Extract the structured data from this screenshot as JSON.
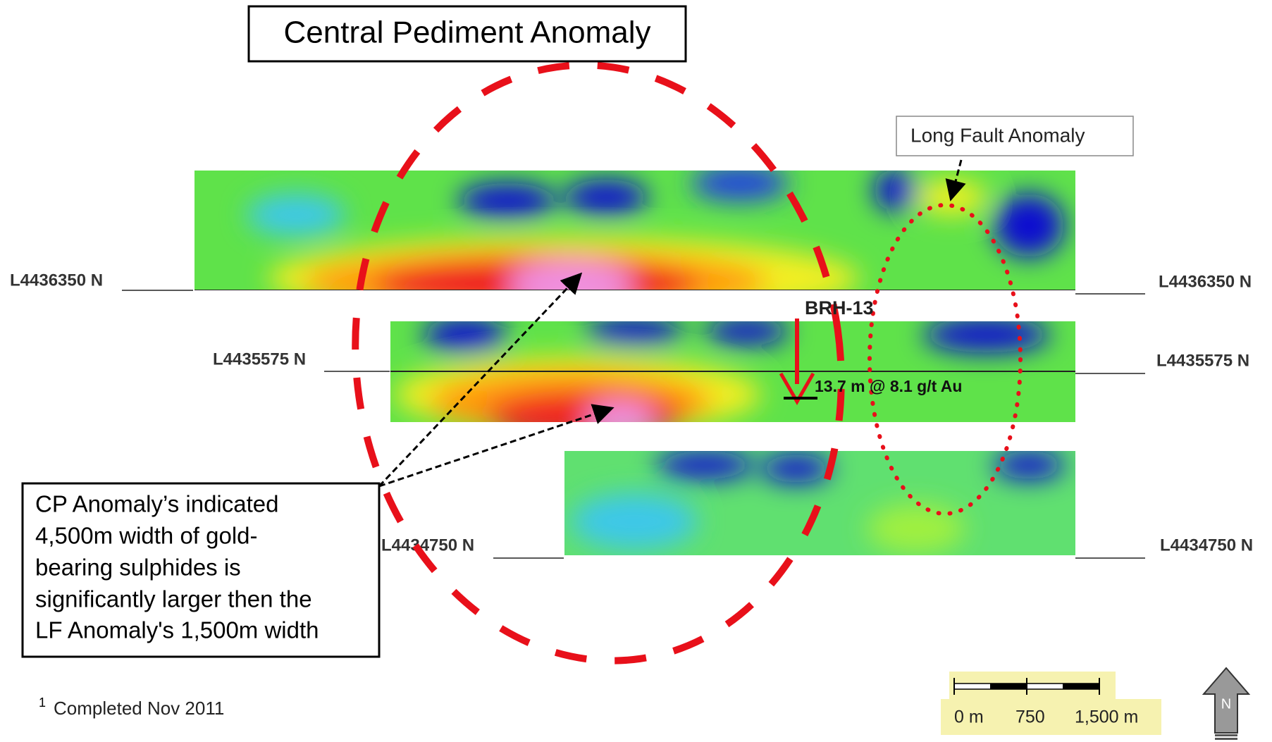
{
  "title": "Central Pediment Anomaly",
  "annotations": {
    "long_fault": "Long Fault Anomaly",
    "drill_hole": "BRH-13",
    "intercept": "13.7 m @ 8.1 g/t Au",
    "callout": [
      "CP Anomaly’s indicated",
      "4,500m width of gold-",
      "bearing sulphides  is",
      "significantly larger then  the",
      "LF Anomaly's 1,500m width"
    ]
  },
  "lines": [
    {
      "left": "L4436350 N",
      "right": "L4436350 N"
    },
    {
      "left": "L4435575 N",
      "right": "L4435575 N"
    },
    {
      "left": "L4434750 N",
      "right": "L4434750 N"
    }
  ],
  "footnote": {
    "marker": "1",
    "text": "Completed Nov 2011"
  },
  "scale_bar": [
    "0 m",
    "750",
    "1,500 m"
  ],
  "north": "N"
}
